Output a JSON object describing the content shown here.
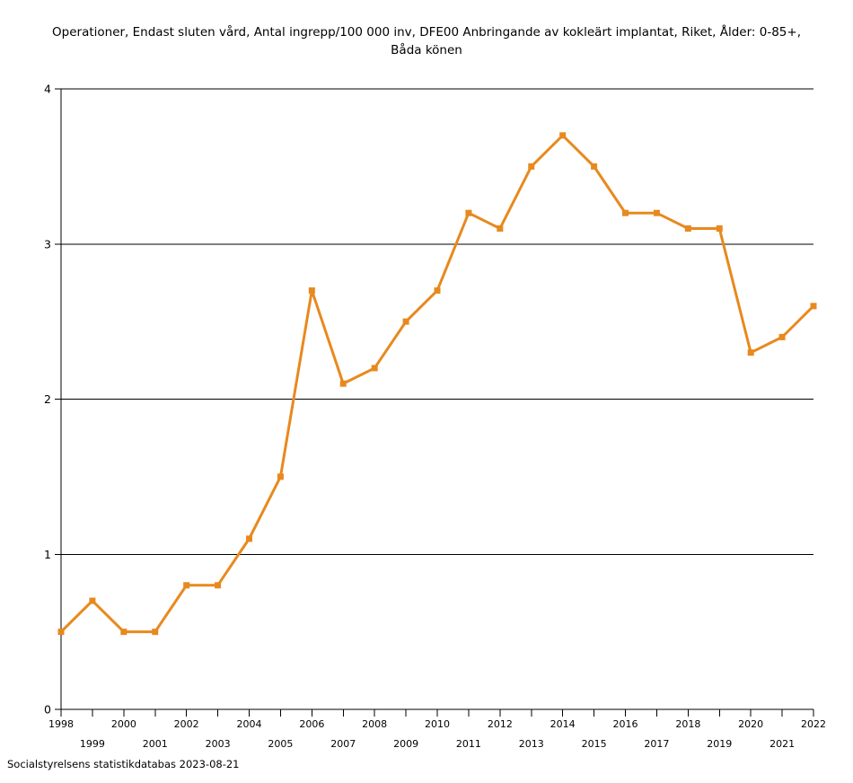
{
  "page": {
    "title": "Operationer, Endast sluten vård, Antal ingrepp/100 000 inv, DFE00 Anbringande av kokleärt implantat, Riket, Ålder: 0-85+, Båda könen",
    "footer": "Socialstyrelsens statistikdatabas 2023-08-21"
  },
  "chart_data": {
    "type": "line",
    "title": "Operationer, Endast sluten vård, Antal ingrepp/100 000 inv, DFE00 Anbringande av kokleärt implantat, Riket, Ålder: 0-85+, Båda könen",
    "x": [
      1998,
      1999,
      2000,
      2001,
      2002,
      2003,
      2004,
      2005,
      2006,
      2007,
      2008,
      2009,
      2010,
      2011,
      2012,
      2013,
      2014,
      2015,
      2016,
      2017,
      2018,
      2019,
      2020,
      2021,
      2022
    ],
    "values": [
      0.5,
      0.7,
      0.5,
      0.5,
      0.8,
      0.8,
      1.1,
      1.5,
      2.7,
      2.1,
      2.2,
      2.5,
      2.7,
      3.2,
      3.1,
      3.5,
      3.7,
      3.5,
      3.2,
      3.2,
      3.1,
      3.1,
      2.3,
      2.4,
      2.6
    ],
    "xlabel": "",
    "ylabel": "",
    "ylim": [
      0,
      4
    ],
    "yticks": [
      0,
      1,
      2,
      3,
      4
    ],
    "grid": "horizontal",
    "legend": "none",
    "x_label_stagger": true,
    "line_color": "#E8891E",
    "marker": "square",
    "marker_size": 7,
    "line_width": 3,
    "axis_color": "#000000",
    "background_color": "#FFFFFF"
  }
}
